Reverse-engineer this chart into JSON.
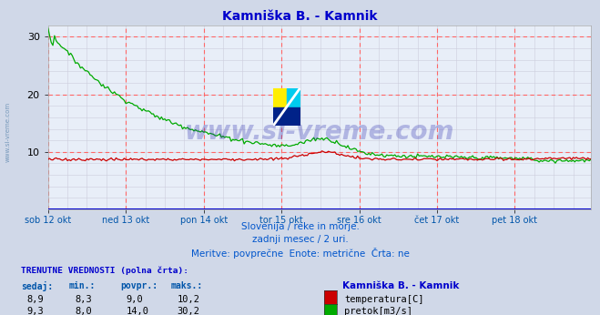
{
  "title": "Kamniška B. - Kamnik",
  "bg_color": "#d0d8e8",
  "plot_bg_color": "#e8eef8",
  "grid_color_minor": "#ccccdd",
  "title_color": "#0000cc",
  "axis_label_color": "#0055aa",
  "text_color": "#0055cc",
  "watermark_text": "www.si-vreme.com",
  "watermark_color": "#1a1acc",
  "ylim": [
    0,
    32
  ],
  "yticks": [
    10,
    20,
    30
  ],
  "n_points": 336,
  "x_tick_labels": [
    "sob 12 okt",
    "ned 13 okt",
    "pon 14 okt",
    "tor 15 okt",
    "sre 16 okt",
    "čet 17 okt",
    "pet 18 okt"
  ],
  "x_tick_positions": [
    0,
    48,
    96,
    144,
    192,
    240,
    288
  ],
  "subtitle_lines": [
    "Slovenija / reke in morje.",
    "zadnji mesec / 2 uri.",
    "Meritve: povprečne  Enote: metrične  Črta: ne"
  ],
  "current_label": "TRENUTNE VREDNOSTI (polna črta):",
  "col_headers": [
    "sedaj:",
    "min.:",
    "povpr.:",
    "maks.:"
  ],
  "row1_vals": [
    "8,9",
    "8,3",
    "9,0",
    "10,2"
  ],
  "row2_vals": [
    "9,3",
    "8,0",
    "14,0",
    "30,2"
  ],
  "legend_label1": "temperatura[C]",
  "legend_label2": "pretok[m3/s]",
  "legend_station": "Kamniška B. - Kamnik",
  "temp_color": "#cc0000",
  "flow_color": "#00aa00",
  "line_width": 1.0,
  "vline_color": "#ff6666",
  "hline_color": "#ff6666",
  "spine_color": "#aaaaaa",
  "baseline_color": "#0000cc"
}
